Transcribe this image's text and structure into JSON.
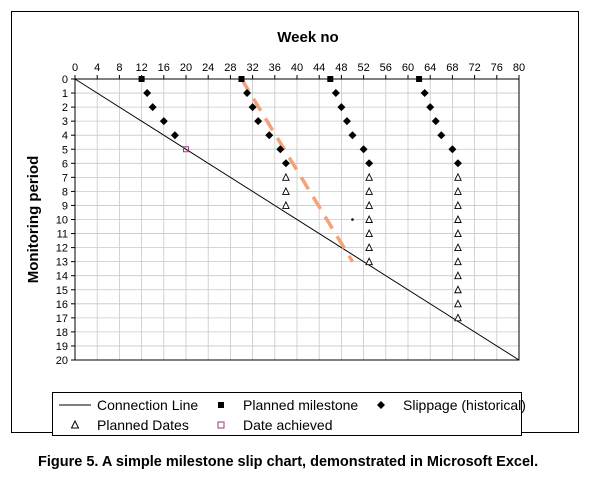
{
  "chart_data": {
    "type": "scatter",
    "title": "Week no",
    "xlabel": "Week no",
    "ylabel": "Monitoring period",
    "xlim": [
      0,
      80
    ],
    "ylim": [
      0,
      20
    ],
    "y_inverted": true,
    "x_axis_position": "top",
    "x_ticks": [
      "0",
      "4",
      "8",
      "12",
      "16",
      "20",
      "24",
      "28",
      "32",
      "36",
      "40",
      "44",
      "48",
      "52",
      "56",
      "60",
      "64",
      "68",
      "72",
      "76",
      "80"
    ],
    "y_ticks": [
      "0",
      "1",
      "2",
      "3",
      "4",
      "5",
      "6",
      "7",
      "8",
      "9",
      "10",
      "11",
      "12",
      "13",
      "14",
      "15",
      "16",
      "17",
      "18",
      "19",
      "20"
    ],
    "grid": true,
    "legend_position": "bottom",
    "series": [
      {
        "name": "Connection Line",
        "kind": "line",
        "points": [
          [
            0,
            0
          ],
          [
            80,
            20
          ]
        ]
      },
      {
        "name": "Planned milestone",
        "kind": "square",
        "points": [
          [
            12,
            0
          ],
          [
            30,
            0
          ],
          [
            46,
            0
          ],
          [
            62,
            0
          ]
        ]
      },
      {
        "name": "Slippage (historical)",
        "kind": "diamond",
        "points": [
          [
            13,
            1
          ],
          [
            14,
            2
          ],
          [
            16,
            3
          ],
          [
            18,
            4
          ],
          [
            31,
            1
          ],
          [
            32,
            2
          ],
          [
            33,
            3
          ],
          [
            35,
            4
          ],
          [
            37,
            5
          ],
          [
            38,
            6
          ],
          [
            47,
            1
          ],
          [
            48,
            2
          ],
          [
            49,
            3
          ],
          [
            50,
            4
          ],
          [
            52,
            5
          ],
          [
            53,
            6
          ],
          [
            63,
            1
          ],
          [
            64,
            2
          ],
          [
            65,
            3
          ],
          [
            66,
            4
          ],
          [
            68,
            5
          ],
          [
            69,
            6
          ]
        ]
      },
      {
        "name": "Planned Dates",
        "kind": "triangle",
        "points": [
          [
            38,
            7
          ],
          [
            38,
            8
          ],
          [
            38,
            9
          ],
          [
            53,
            7
          ],
          [
            53,
            8
          ],
          [
            53,
            9
          ],
          [
            53,
            10
          ],
          [
            53,
            11
          ],
          [
            53,
            12
          ],
          [
            53,
            13
          ],
          [
            69,
            7
          ],
          [
            69,
            8
          ],
          [
            69,
            9
          ],
          [
            69,
            10
          ],
          [
            69,
            11
          ],
          [
            69,
            12
          ],
          [
            69,
            13
          ],
          [
            69,
            14
          ],
          [
            69,
            15
          ],
          [
            69,
            16
          ],
          [
            69,
            17
          ]
        ]
      },
      {
        "name": "Date achieved",
        "kind": "open-square",
        "points": [
          [
            20,
            5
          ]
        ]
      },
      {
        "name": "",
        "kind": "dot",
        "points": [
          [
            50,
            10
          ]
        ]
      },
      {
        "name": "",
        "kind": "dashed-trend",
        "points": [
          [
            30,
            0
          ],
          [
            50,
            13
          ]
        ]
      }
    ]
  },
  "colors": {
    "achieved": "#9b3a8c",
    "trend": "#f4a27a",
    "grid": "#c8c8c8"
  },
  "legend": {
    "connection_line": "Connection Line",
    "planned_milestone": "Planned milestone",
    "slippage": "Slippage (historical)",
    "planned_dates": "Planned Dates",
    "date_achieved": "Date achieved"
  },
  "caption": "Figure 5. A simple milestone slip chart, demonstrated in Microsoft Excel."
}
